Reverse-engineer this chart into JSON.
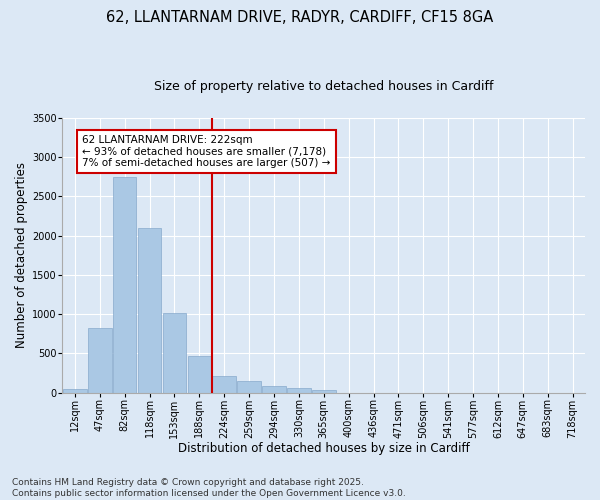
{
  "title_line1": "62, LLANTARNAM DRIVE, RADYR, CARDIFF, CF15 8GA",
  "title_line2": "Size of property relative to detached houses in Cardiff",
  "xlabel": "Distribution of detached houses by size in Cardiff",
  "ylabel": "Number of detached properties",
  "categories": [
    "12sqm",
    "47sqm",
    "82sqm",
    "118sqm",
    "153sqm",
    "188sqm",
    "224sqm",
    "259sqm",
    "294sqm",
    "330sqm",
    "365sqm",
    "400sqm",
    "436sqm",
    "471sqm",
    "506sqm",
    "541sqm",
    "577sqm",
    "612sqm",
    "647sqm",
    "683sqm",
    "718sqm"
  ],
  "values": [
    50,
    830,
    2750,
    2100,
    1020,
    470,
    210,
    155,
    85,
    55,
    30,
    0,
    0,
    0,
    0,
    0,
    0,
    0,
    0,
    0,
    0
  ],
  "bar_color": "#aac8e4",
  "bar_edge_color": "#88aacc",
  "highlight_line_color": "#cc0000",
  "annotation_text": "62 LLANTARNAM DRIVE: 222sqm\n← 93% of detached houses are smaller (7,178)\n7% of semi-detached houses are larger (507) →",
  "annotation_box_color": "#cc0000",
  "annotation_text_color": "#000000",
  "ylim": [
    0,
    3500
  ],
  "yticks": [
    0,
    500,
    1000,
    1500,
    2000,
    2500,
    3000,
    3500
  ],
  "background_color": "#dce8f5",
  "plot_background": "#dce8f5",
  "grid_color": "#ffffff",
  "footer_line1": "Contains HM Land Registry data © Crown copyright and database right 2025.",
  "footer_line2": "Contains public sector information licensed under the Open Government Licence v3.0.",
  "title1_fontsize": 10.5,
  "title2_fontsize": 9,
  "axis_label_fontsize": 8.5,
  "tick_fontsize": 7,
  "annotation_fontsize": 7.5,
  "footer_fontsize": 6.5
}
